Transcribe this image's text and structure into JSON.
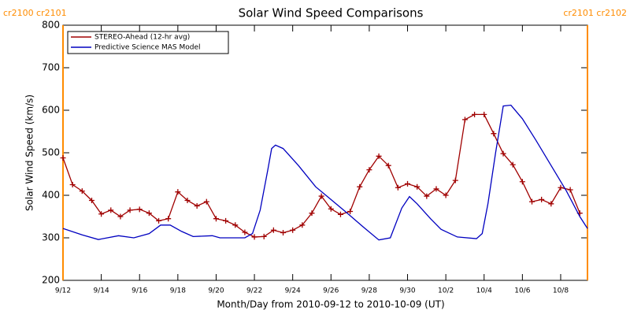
{
  "chart_data": {
    "type": "line",
    "title": "Solar Wind Speed Comparisons",
    "x_label": "Month/Day from 2010-09-12 to 2010-10-09 (UT)",
    "y_label": "Solar Wind Speed (km/s)",
    "xlim": [
      0,
      27.4
    ],
    "ylim": [
      200,
      800
    ],
    "yticks": [
      200,
      300,
      400,
      500,
      600,
      700,
      800
    ],
    "xticks": [
      {
        "value": 0,
        "label": "9/12"
      },
      {
        "value": 2,
        "label": "9/14"
      },
      {
        "value": 4,
        "label": "9/16"
      },
      {
        "value": 6,
        "label": "9/18"
      },
      {
        "value": 8,
        "label": "9/20"
      },
      {
        "value": 10,
        "label": "9/22"
      },
      {
        "value": 12,
        "label": "9/24"
      },
      {
        "value": 14,
        "label": "9/26"
      },
      {
        "value": 16,
        "label": "9/28"
      },
      {
        "value": 18,
        "label": "9/30"
      },
      {
        "value": 20,
        "label": "10/2"
      },
      {
        "value": 22,
        "label": "10/4"
      },
      {
        "value": 24,
        "label": "10/6"
      },
      {
        "value": 26,
        "label": "10/8"
      }
    ],
    "legend": "top-left",
    "markers": [
      {
        "x": 0,
        "label": "cr2100 cr2101",
        "color": "#ff8c00"
      },
      {
        "x": 27.4,
        "label": "cr2101 cr2102",
        "color": "#ff8c00"
      }
    ],
    "series": [
      {
        "name": "STEREO-Ahead (12-hr avg)",
        "color": "#a00000",
        "point_marker": "plus",
        "x": [
          0,
          0.5,
          1,
          1.5,
          2,
          2.5,
          3,
          3.5,
          4,
          4.5,
          5,
          5.5,
          6,
          6.5,
          7,
          7.5,
          8,
          8.5,
          9,
          9.5,
          10,
          10.5,
          11,
          11.5,
          12,
          12.5,
          13,
          13.5,
          14,
          14.5,
          15,
          15.5,
          16,
          16.5,
          17,
          17.5,
          18,
          18.5,
          19,
          19.5,
          20,
          20.5,
          21,
          21.5,
          22,
          22.5,
          23,
          23.5,
          24,
          24.5,
          25,
          25.5,
          26,
          26.5,
          27
        ],
        "values": [
          488,
          425,
          410,
          388,
          356,
          365,
          350,
          365,
          367,
          358,
          340,
          345,
          408,
          388,
          375,
          385,
          345,
          340,
          330,
          313,
          302,
          303,
          318,
          312,
          318,
          330,
          358,
          398,
          368,
          355,
          362,
          420,
          460,
          492,
          470,
          418,
          427,
          420,
          398,
          415,
          400,
          435,
          578,
          590,
          590,
          545,
          498,
          472,
          432,
          385,
          390,
          380,
          418,
          413,
          358
        ]
      },
      {
        "name": "Predictive Science MAS Model",
        "color": "#0000c0",
        "x": [
          0,
          1,
          1.85,
          2.9,
          3.7,
          4.5,
          5.1,
          5.6,
          6.2,
          6.8,
          7.8,
          8.2,
          9.5,
          9.9,
          10.3,
          10.7,
          10.9,
          11.1,
          11.5,
          12.3,
          13.2,
          14,
          14.8,
          15.7,
          16.5,
          17.1,
          17.7,
          18.1,
          18.5,
          19.2,
          19.75,
          20.6,
          21.6,
          21.9,
          22.2,
          22.6,
          23.0,
          23.4,
          24,
          24.7,
          25.5,
          26.3,
          27,
          27.4
        ],
        "values": [
          322,
          307,
          296,
          305,
          300,
          310,
          330,
          330,
          315,
          303,
          305,
          300,
          300,
          310,
          365,
          460,
          510,
          518,
          510,
          470,
          420,
          390,
          360,
          325,
          295,
          300,
          370,
          397,
          380,
          345,
          320,
          302,
          298,
          310,
          380,
          500,
          610,
          612,
          580,
          530,
          470,
          410,
          350,
          322
        ]
      }
    ]
  }
}
